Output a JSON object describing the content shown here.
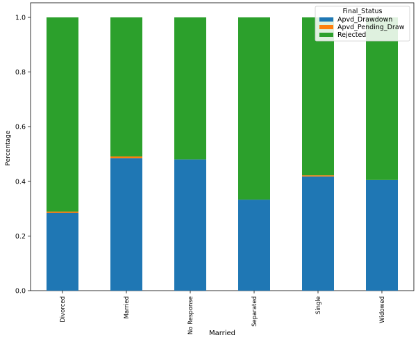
{
  "chart_data": {
    "type": "bar",
    "stacked": true,
    "title": "",
    "xlabel": "Married",
    "ylabel": "Percentage",
    "ylim": [
      0,
      1.05
    ],
    "yticks": [
      0.0,
      0.2,
      0.4,
      0.6,
      0.8,
      1.0
    ],
    "ytick_labels": [
      "0.0",
      "0.2",
      "0.4",
      "0.6",
      "0.8",
      "1.0"
    ],
    "categories": [
      "Divorced",
      "Married",
      "No Response",
      "Separated",
      "Single",
      "Widowed"
    ],
    "legend_title": "Final_Status",
    "legend_position": "top-right",
    "series": [
      {
        "name": "Apvd_Drawdown",
        "color": "#1f77b4",
        "values": [
          0.285,
          0.485,
          0.48,
          0.333,
          0.418,
          0.405
        ]
      },
      {
        "name": "Apvd_Pending_Draw",
        "color": "#ff7f0e",
        "values": [
          0.004,
          0.006,
          0.0,
          0.0,
          0.004,
          0.0
        ]
      },
      {
        "name": "Rejected",
        "color": "#2ca02c",
        "values": [
          0.711,
          0.509,
          0.52,
          0.667,
          0.578,
          0.595
        ]
      }
    ]
  }
}
